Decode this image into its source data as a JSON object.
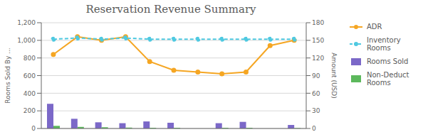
{
  "chart_data": {
    "type": "bar",
    "title": "Reservation Revenue Summary",
    "ylabel": "Rooms Sold By ...",
    "y2label": "Amount (USD)",
    "categories": [
      null,
      null,
      null,
      null,
      null,
      null,
      null,
      null,
      null,
      null,
      null
    ],
    "series": [
      {
        "name": "ADR",
        "type": "line",
        "color": "#f5a623",
        "marker": "o",
        "line_style": "solid",
        "values": [
          840,
          1040,
          1000,
          1040,
          760,
          660,
          640,
          620,
          640,
          940,
          1000
        ]
      },
      {
        "name": "Inventory\nRooms",
        "type": "line",
        "axis": "y2",
        "color": "#4ec9e1",
        "marker": "o",
        "line_style": "dashed",
        "values": [
          152,
          154,
          152,
          154,
          152,
          152,
          152,
          152,
          152,
          152,
          152
        ]
      },
      {
        "name": "Rooms Sold",
        "type": "bar",
        "color": "#7b68c8",
        "values": [
          280,
          110,
          70,
          60,
          80,
          65,
          0,
          60,
          75,
          0,
          40
        ]
      },
      {
        "name": "Non-Deduct\nRooms",
        "type": "bar",
        "color": "#5cb85c",
        "values": [
          30,
          18,
          14,
          10,
          8,
          8,
          0,
          8,
          8,
          0,
          5
        ]
      }
    ],
    "ylim": [
      0,
      1200
    ],
    "yticks": [
      0,
      200,
      400,
      600,
      800,
      {
        "value": 1000,
        "label": "1,000"
      },
      {
        "value": 1200,
        "label": "1,200"
      }
    ],
    "y2lim": [
      0,
      180
    ],
    "y2ticks": [
      0,
      30,
      60,
      90,
      120,
      150,
      180
    ],
    "grid": true,
    "legend": "right",
    "tick_labels": "y"
  }
}
